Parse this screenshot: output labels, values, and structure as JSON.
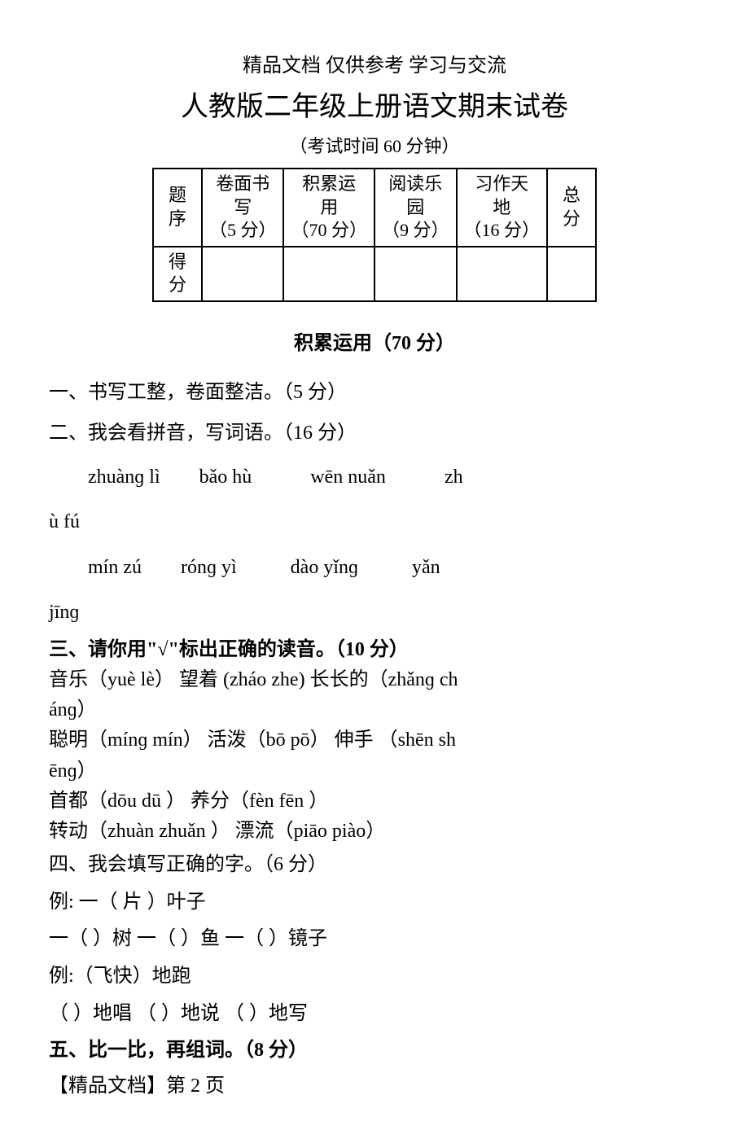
{
  "header_note": "精品文档 仅供参考 学习与交流",
  "title": "人教版二年级上册语文期末试卷",
  "subtitle": "（考试时间 60 分钟）",
  "score_table": {
    "row1_label": "题序",
    "row2_label": "得分",
    "cols": [
      {
        "line1": "卷面书",
        "line2": "写",
        "line3": "（5 分）"
      },
      {
        "line1": "积累运",
        "line2": "用",
        "line3": "（70 分）"
      },
      {
        "line1": "阅读乐",
        "line2": "园",
        "line3": "（9 分）"
      },
      {
        "line1": "习作天",
        "line2": "地",
        "line3": "（16 分）"
      }
    ],
    "total_col": {
      "line1": "总",
      "line2": "分"
    }
  },
  "section_title": "积累运用（70 分）",
  "q1": "一、书写工整，卷面整洁。（5 分）",
  "q2": {
    "title": "二、我会看拼音，写词语。（16 分）",
    "row1": {
      "a": "zhuànɡ lì",
      "b": "bǎo  hù",
      "c": "wēn  nuǎn",
      "d": "zh"
    },
    "row1b": "ù  fú",
    "row2": {
      "a": "mín  zú",
      "b": "rónɡ  yì",
      "c": "dào  yǐnɡ",
      "d": "yǎn"
    },
    "row2b": "jīnɡ"
  },
  "q3": {
    "title": "三、请你用\"√\"标出正确的读音。（10 分）",
    "line1a": "音乐（yuè    lè）   望着 (zháo   zhe)      长长的（zhǎnɡ ch",
    "line1b": "ánɡ）",
    "line2a": "聪明（mínɡ mín）   活泼（bō      pō）      伸手 （shēn  sh",
    "line2b": "ēnɡ）",
    "line3": "首都（dōu       dū        ）      养分（fèn      fēn ）",
    "line4": "转动（zhuàn     zhuǎn  ）  漂流（piāo     piào）"
  },
  "q4": {
    "title": "四、我会填写正确的字。（6 分）",
    "ex1": "例: 一（ 片 ）叶子",
    "line1": "一（      ）树      一（      ）鱼      一（      ）镜子",
    "ex2": "例:（飞快）地跑",
    "line2": "（        ）地唱    （      ）地说    （        ）地写"
  },
  "q5": "五、比一比，再组词。（8 分）",
  "footer": "【精品文档】第 2 页"
}
